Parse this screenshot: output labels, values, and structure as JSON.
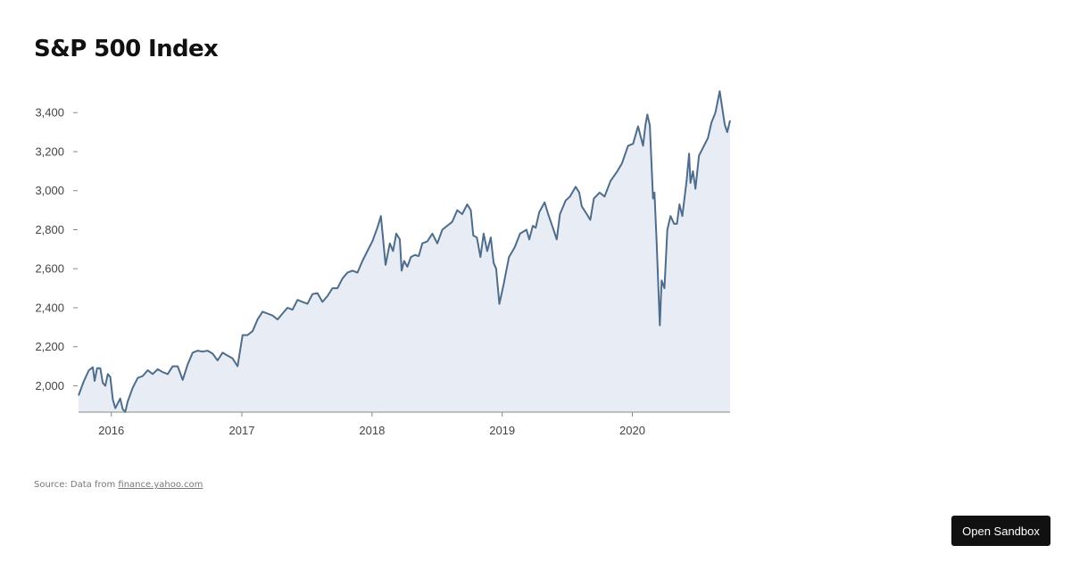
{
  "page": {
    "title": "S&P 500 Index",
    "source_prefix": "Source: Data from ",
    "source_link": "finance.yahoo.com",
    "sandbox_button": "Open Sandbox"
  },
  "colors": {
    "line": "#4e6d8c",
    "area": "#e8edf5",
    "axis": "#888888"
  },
  "chart_data": {
    "type": "area",
    "title": "S&P 500 Index",
    "xlabel": "",
    "ylabel": "",
    "xlim": [
      "2015-10-01",
      "2020-10-01"
    ],
    "ylim": [
      1865,
      3520
    ],
    "grid": false,
    "legend": "none",
    "x_ticks": [
      {
        "date": "2016-01-01",
        "label": "2016"
      },
      {
        "date": "2017-01-01",
        "label": "2017"
      },
      {
        "date": "2018-01-01",
        "label": "2018"
      },
      {
        "date": "2019-01-01",
        "label": "2019"
      },
      {
        "date": "2020-01-01",
        "label": "2020"
      }
    ],
    "y_ticks": [
      {
        "value": 2000,
        "label": "2,000"
      },
      {
        "value": 2200,
        "label": "2,200"
      },
      {
        "value": 2400,
        "label": "2,400"
      },
      {
        "value": 2600,
        "label": "2,600"
      },
      {
        "value": 2800,
        "label": "2,800"
      },
      {
        "value": 3000,
        "label": "3,000"
      },
      {
        "value": 3200,
        "label": "3,200"
      },
      {
        "value": 3400,
        "label": "3,400"
      }
    ],
    "points": [
      [
        "2015-10-01",
        1950
      ],
      [
        "2015-10-15",
        2020
      ],
      [
        "2015-10-30",
        2080
      ],
      [
        "2015-11-10",
        2095
      ],
      [
        "2015-11-15",
        2025
      ],
      [
        "2015-11-22",
        2090
      ],
      [
        "2015-12-01",
        2090
      ],
      [
        "2015-12-08",
        2015
      ],
      [
        "2015-12-15",
        2000
      ],
      [
        "2015-12-22",
        2060
      ],
      [
        "2015-12-29",
        2045
      ],
      [
        "2016-01-05",
        1930
      ],
      [
        "2016-01-12",
        1885
      ],
      [
        "2016-01-19",
        1910
      ],
      [
        "2016-01-26",
        1935
      ],
      [
        "2016-02-02",
        1880
      ],
      [
        "2016-02-09",
        1860
      ],
      [
        "2016-02-16",
        1920
      ],
      [
        "2016-03-01",
        1990
      ],
      [
        "2016-03-15",
        2040
      ],
      [
        "2016-03-29",
        2050
      ],
      [
        "2016-04-12",
        2080
      ],
      [
        "2016-04-26",
        2060
      ],
      [
        "2016-05-10",
        2085
      ],
      [
        "2016-05-24",
        2070
      ],
      [
        "2016-06-07",
        2060
      ],
      [
        "2016-06-21",
        2100
      ],
      [
        "2016-07-05",
        2100
      ],
      [
        "2016-07-19",
        2030
      ],
      [
        "2016-08-02",
        2110
      ],
      [
        "2016-08-16",
        2170
      ],
      [
        "2016-08-30",
        2180
      ],
      [
        "2016-09-13",
        2175
      ],
      [
        "2016-09-27",
        2180
      ],
      [
        "2016-10-11",
        2165
      ],
      [
        "2016-10-25",
        2130
      ],
      [
        "2016-11-08",
        2170
      ],
      [
        "2016-11-22",
        2155
      ],
      [
        "2016-12-06",
        2140
      ],
      [
        "2016-12-20",
        2100
      ],
      [
        "2017-01-03",
        2260
      ],
      [
        "2017-01-17",
        2260
      ],
      [
        "2017-01-31",
        2280
      ],
      [
        "2017-02-14",
        2340
      ],
      [
        "2017-02-28",
        2380
      ],
      [
        "2017-03-14",
        2370
      ],
      [
        "2017-03-28",
        2360
      ],
      [
        "2017-04-11",
        2340
      ],
      [
        "2017-04-25",
        2370
      ],
      [
        "2017-05-09",
        2400
      ],
      [
        "2017-05-23",
        2390
      ],
      [
        "2017-06-06",
        2440
      ],
      [
        "2017-06-20",
        2430
      ],
      [
        "2017-07-04",
        2420
      ],
      [
        "2017-07-18",
        2470
      ],
      [
        "2017-08-01",
        2475
      ],
      [
        "2017-08-15",
        2430
      ],
      [
        "2017-08-29",
        2460
      ],
      [
        "2017-09-12",
        2500
      ],
      [
        "2017-09-26",
        2500
      ],
      [
        "2017-10-10",
        2550
      ],
      [
        "2017-10-24",
        2580
      ],
      [
        "2017-11-07",
        2590
      ],
      [
        "2017-11-21",
        2580
      ],
      [
        "2017-12-05",
        2640
      ],
      [
        "2017-12-19",
        2690
      ],
      [
        "2018-01-02",
        2740
      ],
      [
        "2018-01-16",
        2810
      ],
      [
        "2018-01-26",
        2870
      ],
      [
        "2018-02-08",
        2620
      ],
      [
        "2018-02-20",
        2730
      ],
      [
        "2018-03-01",
        2690
      ],
      [
        "2018-03-10",
        2780
      ],
      [
        "2018-03-20",
        2750
      ],
      [
        "2018-03-25",
        2590
      ],
      [
        "2018-04-01",
        2640
      ],
      [
        "2018-04-10",
        2610
      ],
      [
        "2018-04-20",
        2660
      ],
      [
        "2018-05-01",
        2670
      ],
      [
        "2018-05-12",
        2665
      ],
      [
        "2018-05-22",
        2730
      ],
      [
        "2018-06-05",
        2740
      ],
      [
        "2018-06-19",
        2780
      ],
      [
        "2018-07-03",
        2730
      ],
      [
        "2018-07-17",
        2800
      ],
      [
        "2018-07-31",
        2820
      ],
      [
        "2018-08-14",
        2840
      ],
      [
        "2018-08-28",
        2900
      ],
      [
        "2018-09-11",
        2880
      ],
      [
        "2018-09-25",
        2930
      ],
      [
        "2018-10-05",
        2900
      ],
      [
        "2018-10-12",
        2770
      ],
      [
        "2018-10-22",
        2760
      ],
      [
        "2018-11-01",
        2660
      ],
      [
        "2018-11-10",
        2780
      ],
      [
        "2018-11-20",
        2690
      ],
      [
        "2018-11-30",
        2760
      ],
      [
        "2018-12-08",
        2630
      ],
      [
        "2018-12-15",
        2600
      ],
      [
        "2018-12-24",
        2420
      ],
      [
        "2019-01-05",
        2520
      ],
      [
        "2019-01-20",
        2660
      ],
      [
        "2019-02-05",
        2710
      ],
      [
        "2019-02-20",
        2780
      ],
      [
        "2019-03-10",
        2800
      ],
      [
        "2019-03-18",
        2750
      ],
      [
        "2019-03-28",
        2820
      ],
      [
        "2019-04-05",
        2810
      ],
      [
        "2019-04-15",
        2890
      ],
      [
        "2019-04-30",
        2940
      ],
      [
        "2019-05-10",
        2880
      ],
      [
        "2019-05-25",
        2800
      ],
      [
        "2019-06-03",
        2750
      ],
      [
        "2019-06-12",
        2880
      ],
      [
        "2019-06-28",
        2950
      ],
      [
        "2019-07-10",
        2970
      ],
      [
        "2019-07-26",
        3020
      ],
      [
        "2019-08-05",
        2990
      ],
      [
        "2019-08-12",
        2920
      ],
      [
        "2019-08-26",
        2880
      ],
      [
        "2019-09-05",
        2850
      ],
      [
        "2019-09-15",
        2960
      ],
      [
        "2019-10-01",
        2990
      ],
      [
        "2019-10-15",
        2970
      ],
      [
        "2019-11-01",
        3050
      ],
      [
        "2019-11-20",
        3100
      ],
      [
        "2019-12-03",
        3140
      ],
      [
        "2019-12-20",
        3230
      ],
      [
        "2020-01-03",
        3240
      ],
      [
        "2020-01-17",
        3330
      ],
      [
        "2020-01-31",
        3230
      ],
      [
        "2020-02-07",
        3340
      ],
      [
        "2020-02-12",
        3390
      ],
      [
        "2020-02-19",
        3335
      ],
      [
        "2020-02-28",
        2960
      ],
      [
        "2020-03-03",
        2990
      ],
      [
        "2020-03-09",
        2740
      ],
      [
        "2020-03-18",
        2310
      ],
      [
        "2020-03-23",
        2540
      ],
      [
        "2020-03-31",
        2500
      ],
      [
        "2020-04-08",
        2800
      ],
      [
        "2020-04-17",
        2870
      ],
      [
        "2020-04-27",
        2830
      ],
      [
        "2020-05-05",
        2830
      ],
      [
        "2020-05-12",
        2930
      ],
      [
        "2020-05-20",
        2870
      ],
      [
        "2020-06-01",
        3050
      ],
      [
        "2020-06-08",
        3190
      ],
      [
        "2020-06-12",
        3040
      ],
      [
        "2020-06-19",
        3100
      ],
      [
        "2020-06-26",
        3010
      ],
      [
        "2020-07-06",
        3180
      ],
      [
        "2020-07-20",
        3230
      ],
      [
        "2020-07-31",
        3270
      ],
      [
        "2020-08-10",
        3350
      ],
      [
        "2020-08-21",
        3400
      ],
      [
        "2020-09-02",
        3510
      ],
      [
        "2020-09-16",
        3340
      ],
      [
        "2020-09-23",
        3300
      ],
      [
        "2020-10-01",
        3360
      ]
    ]
  }
}
